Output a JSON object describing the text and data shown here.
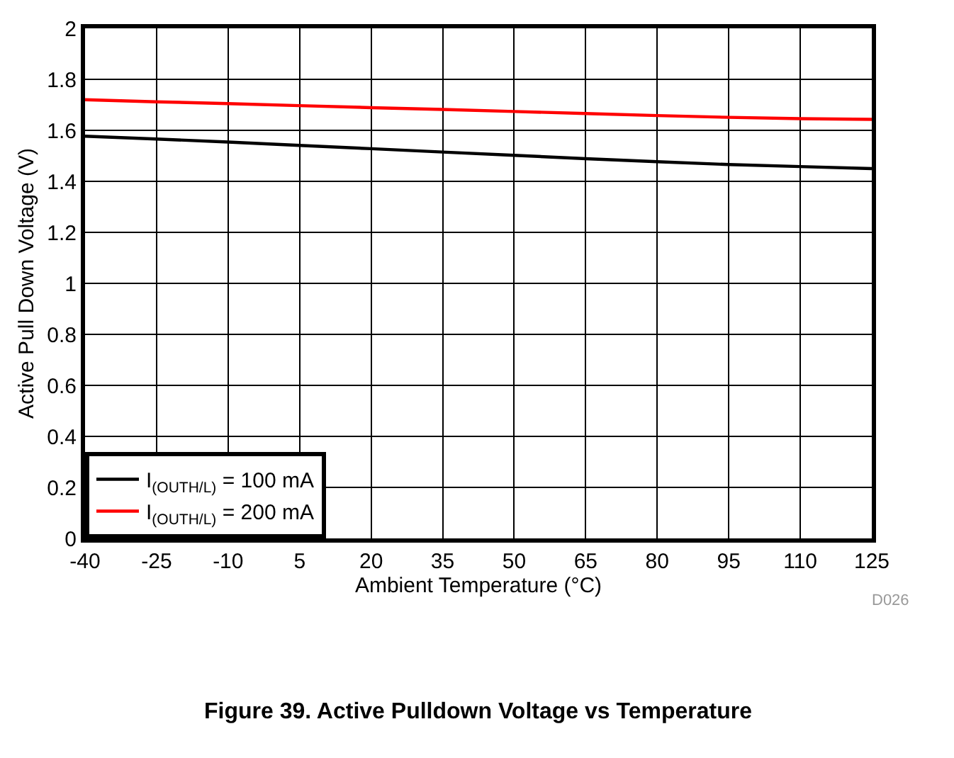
{
  "chart_data": {
    "type": "line",
    "title": "Figure 39. Active Pulldown Voltage vs Temperature",
    "xlabel": "Ambient Temperature (°C)",
    "ylabel": "Active Pull Down Voltage (V)",
    "annotations": [
      "D026"
    ],
    "x": [
      -40,
      -25,
      -10,
      5,
      20,
      35,
      50,
      65,
      80,
      95,
      110,
      125
    ],
    "series": [
      {
        "name": "I$_{(OUTH/L)}$ = 100 mA",
        "color": "#000000",
        "values": [
          1.577,
          1.566,
          1.554,
          1.541,
          1.528,
          1.515,
          1.502,
          1.489,
          1.477,
          1.466,
          1.458,
          1.45
        ]
      },
      {
        "name": "I$_{(OUTH/L)}$ = 200 mA",
        "color": "#ff0000",
        "values": [
          1.72,
          1.712,
          1.705,
          1.697,
          1.689,
          1.682,
          1.674,
          1.666,
          1.658,
          1.651,
          1.646,
          1.643
        ]
      }
    ],
    "xlim": [
      -40,
      125
    ],
    "xticks": [
      -40,
      -25,
      -10,
      5,
      20,
      35,
      50,
      65,
      80,
      95,
      110,
      125
    ],
    "ylim": [
      0,
      2
    ],
    "yticks": [
      0,
      0.2,
      0.4,
      0.6,
      0.8,
      1,
      1.2,
      1.4,
      1.6,
      1.8,
      2
    ],
    "grid": true,
    "legend": "bottom left",
    "marker": "none",
    "line_style": "solid"
  }
}
